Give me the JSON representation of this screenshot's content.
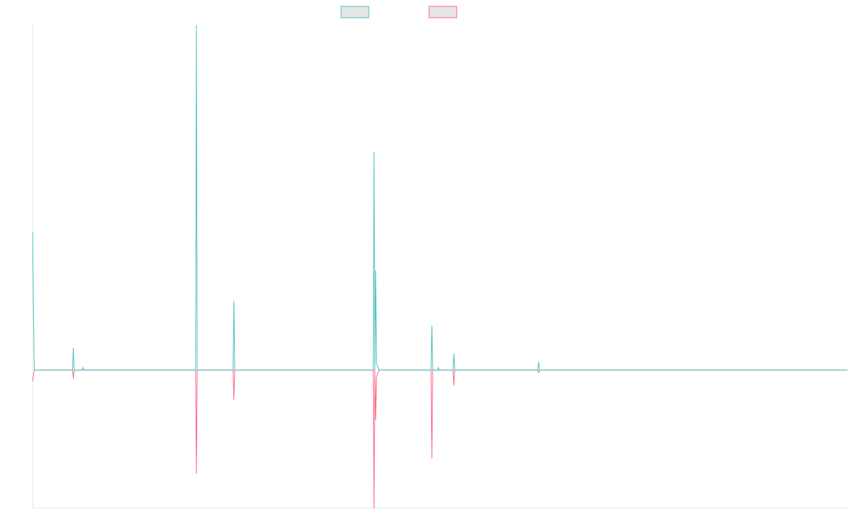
{
  "chart_data": {
    "type": "line",
    "title": "",
    "xlabel": "",
    "ylabel": "",
    "grid": false,
    "legend_position": "top-center",
    "xlim": [
      0,
      1000
    ],
    "ylim": [
      -0.4,
      1.0
    ],
    "series": [
      {
        "color": "#4bc0c0",
        "fill": "#e6e6e6",
        "points": [
          [
            0,
            0.4
          ],
          [
            2,
            0
          ],
          [
            20,
            0
          ],
          [
            49,
            0
          ],
          [
            50,
            0.064
          ],
          [
            51,
            0
          ],
          [
            61,
            0
          ],
          [
            62,
            0.008
          ],
          [
            63,
            0
          ],
          [
            200,
            0
          ],
          [
            201,
            1.0
          ],
          [
            202,
            0
          ],
          [
            246,
            0
          ],
          [
            247,
            0.2
          ],
          [
            248,
            0
          ],
          [
            418,
            0
          ],
          [
            419,
            0.632
          ],
          [
            420,
            0
          ],
          [
            421,
            0.288
          ],
          [
            422,
            0.02
          ],
          [
            425,
            0
          ],
          [
            489,
            0
          ],
          [
            490,
            0.128
          ],
          [
            491,
            0
          ],
          [
            497,
            0
          ],
          [
            498,
            0.008
          ],
          [
            499,
            0
          ],
          [
            516,
            0
          ],
          [
            517,
            0.048
          ],
          [
            518,
            0
          ],
          [
            620,
            0
          ],
          [
            621,
            0.024
          ],
          [
            622,
            0
          ],
          [
            1000,
            0
          ]
        ]
      },
      {
        "color": "#ff6384",
        "fill": "#e6e6e6",
        "points": [
          [
            0,
            -0.032
          ],
          [
            2,
            0
          ],
          [
            49,
            0
          ],
          [
            50,
            -0.024
          ],
          [
            51,
            0
          ],
          [
            200,
            0
          ],
          [
            201,
            -0.3
          ],
          [
            202,
            0
          ],
          [
            246,
            0
          ],
          [
            247,
            -0.086
          ],
          [
            248,
            0
          ],
          [
            418,
            0
          ],
          [
            419,
            -0.4
          ],
          [
            420,
            0
          ],
          [
            421,
            -0.144
          ],
          [
            422,
            -0.02
          ],
          [
            425,
            0
          ],
          [
            489,
            0
          ],
          [
            490,
            -0.256
          ],
          [
            491,
            0
          ],
          [
            516,
            0
          ],
          [
            517,
            -0.044
          ],
          [
            518,
            0
          ],
          [
            620,
            0
          ],
          [
            621,
            -0.008
          ],
          [
            622,
            0
          ],
          [
            1000,
            0
          ]
        ]
      }
    ]
  }
}
